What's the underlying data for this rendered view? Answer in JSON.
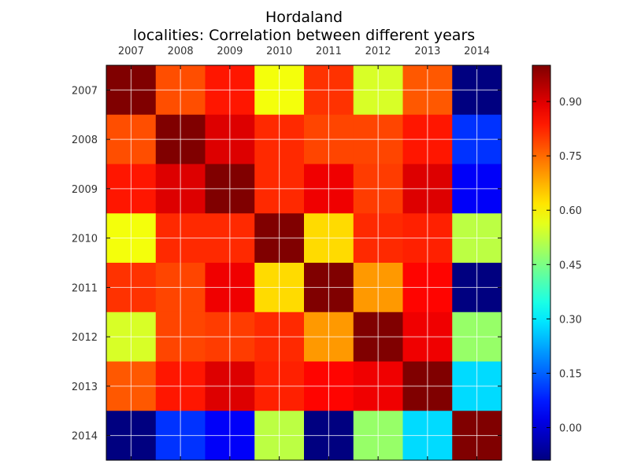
{
  "chart_data": {
    "type": "heatmap",
    "title_line1": "Hordaland",
    "title_line2": "localities: Correlation between different years",
    "x_labels": [
      "2007",
      "2008",
      "2009",
      "2010",
      "2011",
      "2012",
      "2013",
      "2014"
    ],
    "y_labels": [
      "2007",
      "2008",
      "2009",
      "2010",
      "2011",
      "2012",
      "2013",
      "2014"
    ],
    "values": [
      [
        1.0,
        0.78,
        0.84,
        0.58,
        0.81,
        0.55,
        0.77,
        -0.09
      ],
      [
        0.78,
        1.0,
        0.9,
        0.82,
        0.79,
        0.79,
        0.84,
        0.1
      ],
      [
        0.84,
        0.9,
        1.0,
        0.82,
        0.88,
        0.8,
        0.9,
        0.04
      ],
      [
        0.58,
        0.82,
        0.82,
        1.0,
        0.63,
        0.82,
        0.83,
        0.52
      ],
      [
        0.81,
        0.79,
        0.88,
        0.63,
        1.0,
        0.7,
        0.86,
        -0.09
      ],
      [
        0.55,
        0.79,
        0.8,
        0.82,
        0.7,
        1.0,
        0.88,
        0.48
      ],
      [
        0.77,
        0.84,
        0.9,
        0.83,
        0.86,
        0.88,
        1.0,
        0.28
      ],
      [
        -0.09,
        0.1,
        0.04,
        0.52,
        -0.09,
        0.48,
        0.28,
        1.0
      ]
    ],
    "colorbar": {
      "vmin": -0.09,
      "vmax": 1.0,
      "ticks": [
        0.0,
        0.15,
        0.3,
        0.45,
        0.6,
        0.75,
        0.9
      ],
      "tick_labels": [
        "0.00",
        "0.15",
        "0.30",
        "0.45",
        "0.60",
        "0.75",
        "0.90"
      ]
    },
    "colormap": "jet",
    "grid": true
  }
}
